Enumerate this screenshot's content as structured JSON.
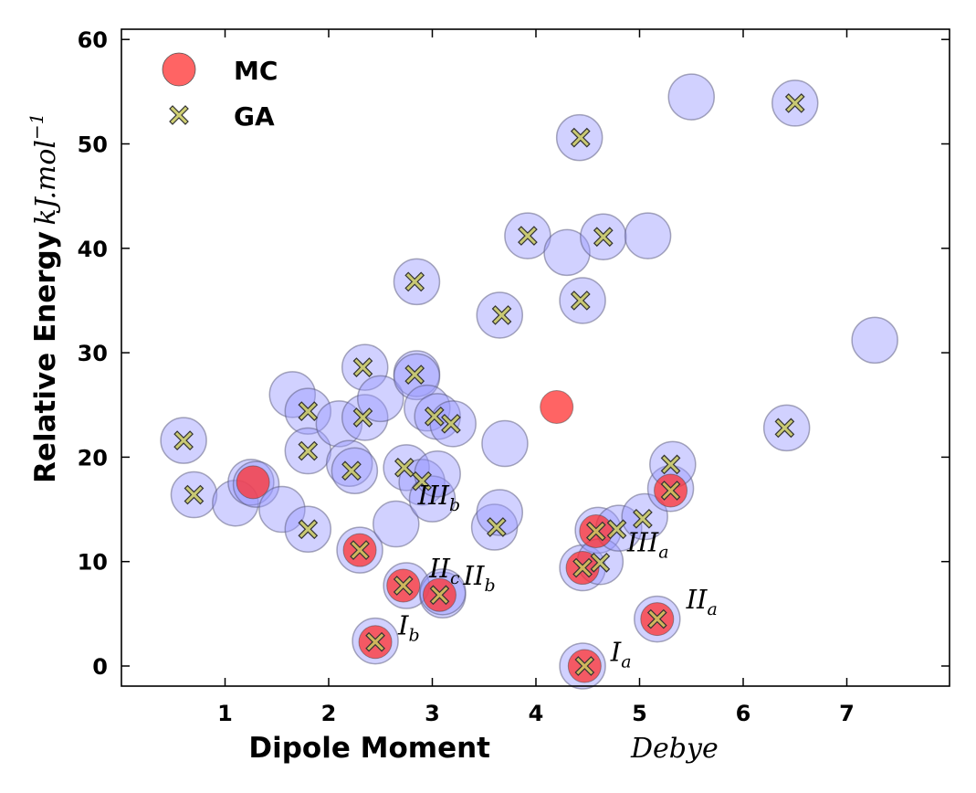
{
  "chart_data": {
    "type": "scatter",
    "xlabel": "Dipole Moment",
    "xlabel_unit": "Debye",
    "ylabel": "Relative Energy",
    "ylabel_unit": "kJ.mol",
    "ylabel_unit_exponent": "−1",
    "xlim": [
      0,
      8
    ],
    "ylim": [
      -2,
      61
    ],
    "xticks": [
      1,
      2,
      3,
      4,
      5,
      6,
      7
    ],
    "yticks": [
      0,
      10,
      20,
      30,
      40,
      50,
      60
    ],
    "grid": false,
    "legend": {
      "placement": "top-left",
      "entries": [
        "MC",
        "GA"
      ]
    },
    "colors": {
      "all": "#9999ff",
      "MC": "#ff3030",
      "GA": "#c8c85a"
    },
    "series": [
      {
        "marker": "large-circle",
        "points": [
          [
            0.6,
            21.6
          ],
          [
            0.7,
            16.4
          ],
          [
            1.1,
            15.6
          ],
          [
            1.25,
            17.6
          ],
          [
            1.3,
            17.4
          ],
          [
            1.55,
            15.0
          ],
          [
            1.65,
            26.0
          ],
          [
            1.8,
            24.4
          ],
          [
            1.8,
            20.6
          ],
          [
            1.8,
            13.1
          ],
          [
            2.1,
            23.2
          ],
          [
            2.2,
            19.4
          ],
          [
            2.25,
            18.7
          ],
          [
            2.3,
            11.1
          ],
          [
            2.35,
            28.6
          ],
          [
            2.35,
            23.8
          ],
          [
            2.45,
            2.4
          ],
          [
            2.5,
            25.6
          ],
          [
            2.65,
            13.6
          ],
          [
            2.75,
            7.7
          ],
          [
            2.75,
            19.0
          ],
          [
            2.85,
            36.8
          ],
          [
            2.85,
            28.0
          ],
          [
            2.85,
            27.7
          ],
          [
            2.9,
            17.6
          ],
          [
            2.95,
            24.7
          ],
          [
            3.0,
            16.0
          ],
          [
            3.05,
            18.4
          ],
          [
            3.05,
            23.9
          ],
          [
            3.1,
            6.8
          ],
          [
            3.1,
            7.1
          ],
          [
            3.2,
            23.2
          ],
          [
            3.6,
            13.3
          ],
          [
            3.65,
            14.7
          ],
          [
            3.65,
            33.6
          ],
          [
            3.7,
            21.3
          ],
          [
            3.92,
            41.2
          ],
          [
            4.3,
            39.6
          ],
          [
            4.42,
            50.6
          ],
          [
            4.45,
            0.0
          ],
          [
            4.45,
            9.4
          ],
          [
            4.45,
            35.0
          ],
          [
            4.6,
            13.0
          ],
          [
            4.62,
            10.0
          ],
          [
            4.65,
            41.1
          ],
          [
            4.8,
            13.2
          ],
          [
            5.05,
            14.3
          ],
          [
            5.08,
            41.2
          ],
          [
            5.17,
            4.5
          ],
          [
            5.3,
            17.0
          ],
          [
            5.32,
            19.3
          ],
          [
            5.5,
            54.5
          ],
          [
            6.42,
            22.8
          ],
          [
            6.5,
            53.9
          ],
          [
            7.27,
            31.2
          ]
        ]
      },
      {
        "name": "MC",
        "marker": "circle",
        "points": [
          [
            1.27,
            17.6
          ],
          [
            2.3,
            11.1
          ],
          [
            2.45,
            2.3
          ],
          [
            2.72,
            7.7
          ],
          [
            3.07,
            6.8
          ],
          [
            4.2,
            24.8
          ],
          [
            4.45,
            9.4
          ],
          [
            4.47,
            0.0
          ],
          [
            4.58,
            12.9
          ],
          [
            5.17,
            4.5
          ],
          [
            5.3,
            16.8
          ]
        ]
      },
      {
        "name": "GA",
        "marker": "x",
        "points": [
          [
            0.6,
            21.6
          ],
          [
            0.7,
            16.4
          ],
          [
            1.8,
            24.4
          ],
          [
            1.8,
            20.6
          ],
          [
            1.8,
            13.1
          ],
          [
            2.22,
            18.7
          ],
          [
            2.3,
            11.1
          ],
          [
            2.33,
            28.6
          ],
          [
            2.33,
            23.8
          ],
          [
            2.45,
            2.3
          ],
          [
            2.72,
            7.7
          ],
          [
            2.73,
            19.0
          ],
          [
            2.83,
            36.8
          ],
          [
            2.83,
            27.9
          ],
          [
            2.9,
            17.7
          ],
          [
            3.02,
            23.9
          ],
          [
            3.07,
            6.8
          ],
          [
            3.18,
            23.2
          ],
          [
            3.62,
            13.3
          ],
          [
            3.67,
            33.6
          ],
          [
            3.92,
            41.2
          ],
          [
            4.43,
            50.6
          ],
          [
            4.43,
            35.0
          ],
          [
            4.45,
            9.4
          ],
          [
            4.47,
            0.0
          ],
          [
            4.58,
            12.9
          ],
          [
            4.62,
            9.9
          ],
          [
            4.65,
            41.1
          ],
          [
            4.78,
            13.1
          ],
          [
            5.03,
            14.1
          ],
          [
            5.17,
            4.5
          ],
          [
            5.3,
            16.8
          ],
          [
            5.3,
            19.3
          ],
          [
            6.4,
            22.8
          ],
          [
            6.5,
            53.9
          ]
        ]
      }
    ],
    "annotations": [
      {
        "label": "I",
        "sub": "a",
        "x": 4.72,
        "y": 0.5
      },
      {
        "label": "I",
        "sub": "b",
        "x": 2.67,
        "y": 3.0
      },
      {
        "label": "II",
        "sub": "a",
        "x": 5.45,
        "y": 5.5
      },
      {
        "label": "II",
        "sub": "b",
        "x": 3.3,
        "y": 7.8
      },
      {
        "label": "II",
        "sub": "c",
        "x": 2.97,
        "y": 8.5
      },
      {
        "label": "III",
        "sub": "a",
        "x": 4.88,
        "y": 11.0
      },
      {
        "label": "III",
        "sub": "b",
        "x": 2.86,
        "y": 15.5
      }
    ]
  }
}
